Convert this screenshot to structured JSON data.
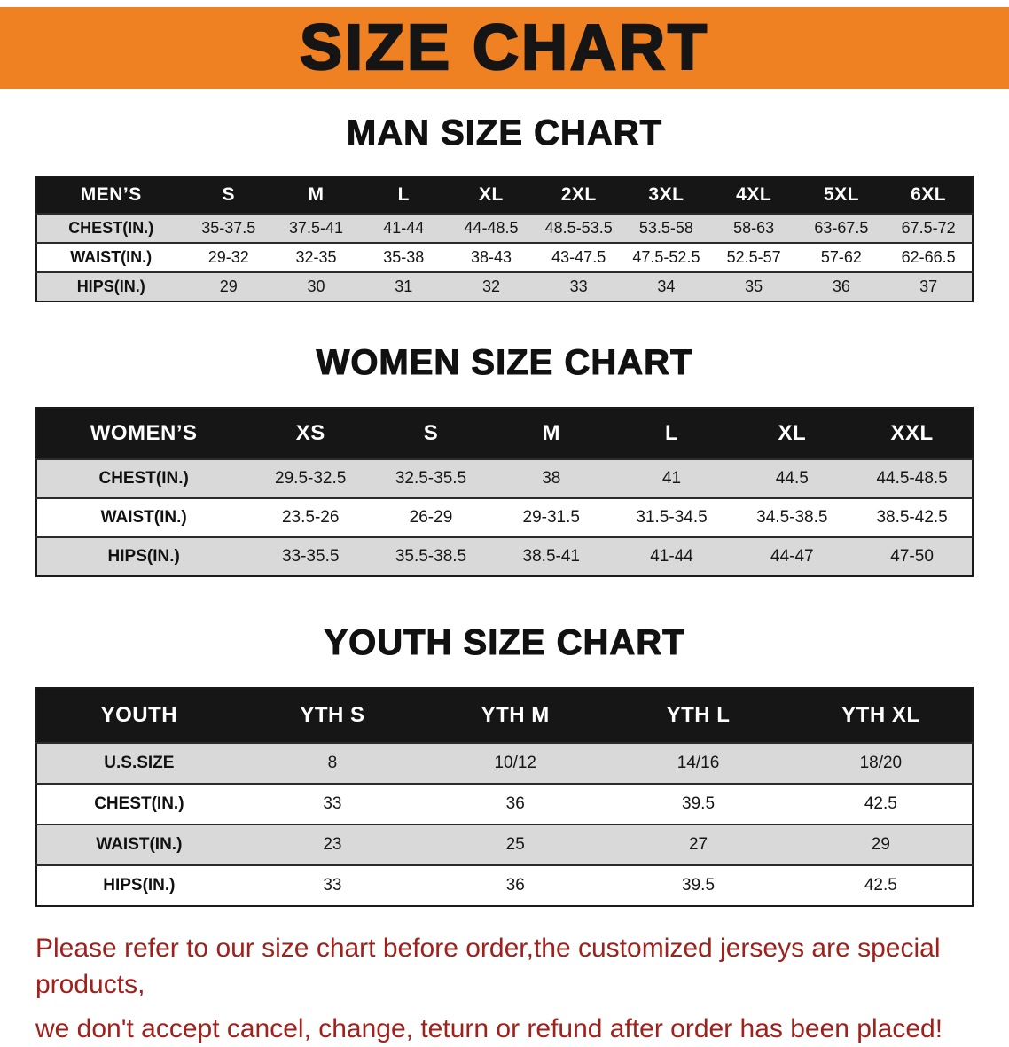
{
  "colors": {
    "banner_bg": "#f08123",
    "table_header_bg": "#161616",
    "stripe_bg": "#d9d9d9",
    "disclaimer_color": "#9e211c"
  },
  "banner": {
    "title": "SIZE CHART"
  },
  "sections": [
    {
      "id": "men",
      "title": "MAN SIZE CHART",
      "table": {
        "header": [
          "MEN’S",
          "S",
          "M",
          "L",
          "XL",
          "2XL",
          "3XL",
          "4XL",
          "5XL",
          "6XL"
        ],
        "rows": [
          {
            "label": "CHEST(IN.)",
            "values": [
              "35-37.5",
              "37.5-41",
              "41-44",
              "44-48.5",
              "48.5-53.5",
              "53.5-58",
              "58-63",
              "63-67.5",
              "67.5-72"
            ]
          },
          {
            "label": "WAIST(IN.)",
            "values": [
              "29-32",
              "32-35",
              "35-38",
              "38-43",
              "43-47.5",
              "47.5-52.5",
              "52.5-57",
              "57-62",
              "62-66.5"
            ]
          },
          {
            "label": "HIPS(IN.)",
            "values": [
              "29",
              "30",
              "31",
              "32",
              "33",
              "34",
              "35",
              "36",
              "37"
            ]
          }
        ]
      }
    },
    {
      "id": "women",
      "title": "WOMEN SIZE CHART",
      "table": {
        "header": [
          "WOMEN’S",
          "XS",
          "S",
          "M",
          "L",
          "XL",
          "XXL"
        ],
        "rows": [
          {
            "label": "CHEST(IN.)",
            "values": [
              "29.5-32.5",
              "32.5-35.5",
              "38",
              "41",
              "44.5",
              "44.5-48.5"
            ]
          },
          {
            "label": "WAIST(IN.)",
            "values": [
              "23.5-26",
              "26-29",
              "29-31.5",
              "31.5-34.5",
              "34.5-38.5",
              "38.5-42.5"
            ]
          },
          {
            "label": "HIPS(IN.)",
            "values": [
              "33-35.5",
              "35.5-38.5",
              "38.5-41",
              "41-44",
              "44-47",
              "47-50"
            ]
          }
        ]
      }
    },
    {
      "id": "youth",
      "title": "YOUTH SIZE CHART",
      "table": {
        "header": [
          "YOUTH",
          "YTH S",
          "YTH M",
          "YTH L",
          "YTH XL"
        ],
        "rows": [
          {
            "label": "U.S.SIZE",
            "values": [
              "8",
              "10/12",
              "14/16",
              "18/20"
            ]
          },
          {
            "label": "CHEST(IN.)",
            "values": [
              "33",
              "36",
              "39.5",
              "42.5"
            ]
          },
          {
            "label": "WAIST(IN.)",
            "values": [
              "23",
              "25",
              "27",
              "29"
            ]
          },
          {
            "label": "HIPS(IN.)",
            "values": [
              "33",
              "36",
              "39.5",
              "42.5"
            ]
          }
        ]
      }
    }
  ],
  "disclaimer": {
    "lines": [
      "Please refer to our size chart before order,the customized jerseys are special products,",
      "we don't accept cancel, change, teturn or refund after order has been placed!"
    ]
  }
}
